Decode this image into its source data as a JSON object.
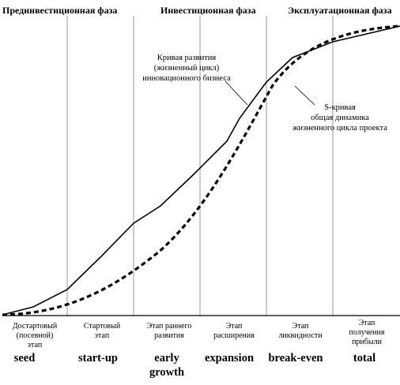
{
  "phases": [
    "Прединвестиционная фаза",
    "Инвестиционная фаза",
    "Эксплуатационная фаза"
  ],
  "curves": {
    "development": {
      "label_lines": [
        "Кривая развития",
        "(жизненный цикл)",
        "инновационного бизнеса"
      ],
      "style": "solid"
    },
    "s_curve": {
      "label_lines": [
        "S-кривая",
        "общая динамика",
        "жизненного цикла проекта"
      ],
      "style": "dashed"
    }
  },
  "stages": [
    {
      "ru_lines": [
        "Достартовый",
        "(посевной)",
        "этап"
      ],
      "en_lines": [
        "seed"
      ]
    },
    {
      "ru_lines": [
        "Стартовый",
        "этап"
      ],
      "en_lines": [
        "start-up"
      ]
    },
    {
      "ru_lines": [
        "Этап раннего",
        "развития"
      ],
      "en_lines": [
        "early",
        "growth"
      ]
    },
    {
      "ru_lines": [
        "Этап",
        "расширения"
      ],
      "en_lines": [
        "expansion"
      ]
    },
    {
      "ru_lines": [
        "Этап",
        "ликвидности"
      ],
      "en_lines": [
        "break-even"
      ]
    },
    {
      "ru_lines": [
        "Этап",
        "получения",
        "прибыли"
      ],
      "en_lines": [
        "total"
      ]
    }
  ]
}
